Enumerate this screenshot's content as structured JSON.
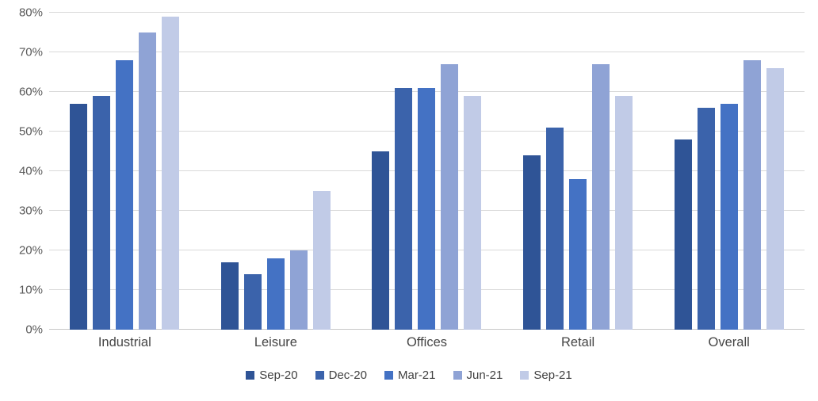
{
  "chart_data": {
    "type": "bar",
    "title": "",
    "categories": [
      "Industrial",
      "Leisure",
      "Offices",
      "Retail",
      "Overall"
    ],
    "series": [
      {
        "name": "Sep-20",
        "color": "#2F5496",
        "values": [
          57,
          17,
          45,
          44,
          48
        ]
      },
      {
        "name": "Dec-20",
        "color": "#3B63AB",
        "values": [
          59,
          14,
          61,
          51,
          56
        ]
      },
      {
        "name": "Mar-21",
        "color": "#4472C4",
        "values": [
          68,
          18,
          61,
          38,
          57
        ]
      },
      {
        "name": "Jun-21",
        "color": "#8FA3D5",
        "values": [
          75,
          20,
          67,
          67,
          68
        ]
      },
      {
        "name": "Sep-21",
        "color": "#C1CBE7",
        "values": [
          79,
          35,
          59,
          59,
          66
        ]
      }
    ],
    "xlabel": "",
    "ylabel": "",
    "ylim": [
      0,
      80
    ],
    "ytick_step": 10,
    "yticks": [
      "0%",
      "10%",
      "20%",
      "30%",
      "40%",
      "50%",
      "60%",
      "70%",
      "80%"
    ],
    "grid": true,
    "legend_position": "bottom",
    "colors": {
      "background": "#FFFFFF",
      "gridline": "#D9D9D9",
      "axis_line": "#C8C8C8",
      "tick_label": "#595959",
      "category_label": "#454545",
      "legend_label": "#404040"
    }
  }
}
